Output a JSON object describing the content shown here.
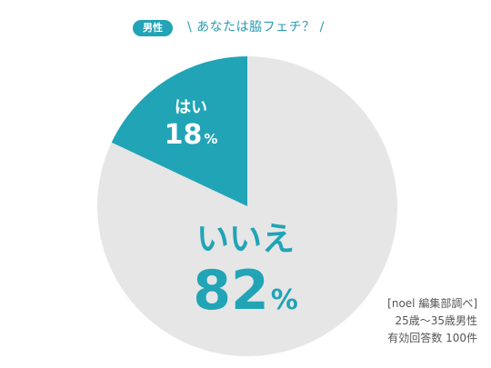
{
  "header": {
    "tag": "男性",
    "question": "\\ あなたは脇フェチ？ /"
  },
  "chart_data": {
    "type": "pie",
    "categories": [
      "はい",
      "いいえ"
    ],
    "values": [
      18,
      82
    ],
    "unit": "%",
    "colors": [
      "#21a4b6",
      "#e6e6e6"
    ],
    "value_label_colors": [
      "#ffffff",
      "#21a4b6"
    ]
  },
  "source": {
    "line1": "[noel 編集部調べ]",
    "line2": "25歳〜35歳男性",
    "line3": "有効回答数 100件"
  }
}
